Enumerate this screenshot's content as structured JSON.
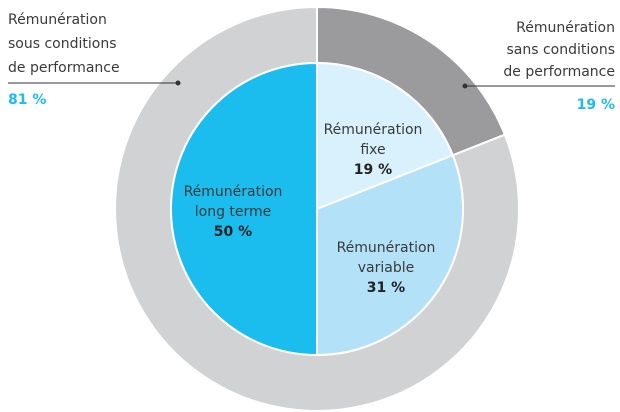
{
  "chart_data": {
    "type": "pie",
    "rings": [
      {
        "categories": [
          [
            "Rémunération",
            "sans conditions",
            "de performance"
          ],
          [
            "Rémunération",
            "sous conditions",
            "de performance"
          ]
        ],
        "values": [
          19,
          81
        ],
        "value_labels": [
          "19 %",
          "81 %"
        ],
        "colors": [
          "#9b9b9d",
          "#d1d2d4"
        ]
      },
      {
        "categories": [
          [
            "Rémunération",
            "fixe"
          ],
          [
            "Rémunération",
            "variable"
          ],
          [
            "Rémunération",
            "long terme"
          ]
        ],
        "values": [
          19,
          31,
          50
        ],
        "value_labels": [
          "19 %",
          "31 %",
          "50 %"
        ],
        "colors": [
          "#d9f1fc",
          "#b3e2f8",
          "#1bbcee"
        ]
      }
    ]
  }
}
